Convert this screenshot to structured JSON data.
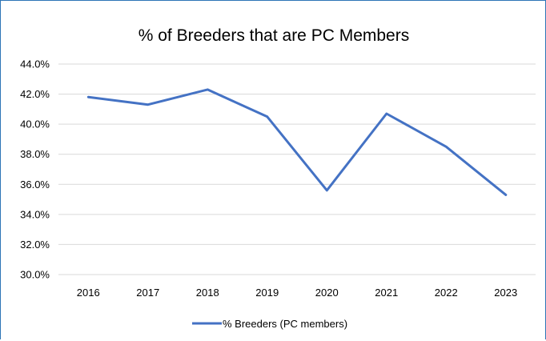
{
  "chart_data": {
    "type": "line",
    "title": "% of Breeders that are PC Members",
    "xlabel": "",
    "ylabel": "",
    "x": [
      "2016",
      "2017",
      "2018",
      "2019",
      "2020",
      "2021",
      "2022",
      "2023"
    ],
    "ylim": [
      30.0,
      44.0
    ],
    "yticks": [
      30.0,
      32.0,
      34.0,
      36.0,
      38.0,
      40.0,
      42.0,
      44.0
    ],
    "y_tick_labels": [
      "30.0%",
      "32.0%",
      "34.0%",
      "36.0%",
      "38.0%",
      "40.0%",
      "42.0%",
      "44.0%"
    ],
    "series": [
      {
        "name": "% Breeders (PC members)",
        "color": "#4472c4",
        "values": [
          41.8,
          41.3,
          42.3,
          40.5,
          35.6,
          40.7,
          38.5,
          35.3
        ]
      }
    ],
    "grid": true,
    "legend": "bottom"
  }
}
